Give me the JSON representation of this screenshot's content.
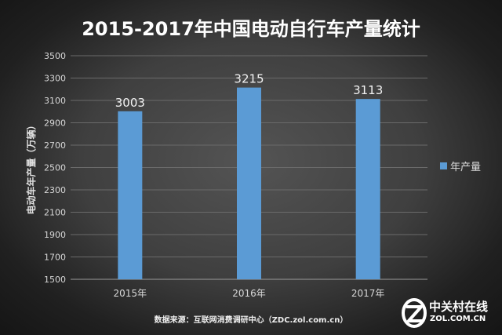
{
  "chart_data": {
    "type": "bar",
    "title": "2015-2017年中国电动自行车产量统计",
    "categories": [
      "2015年",
      "2016年",
      "2017年"
    ],
    "series": [
      {
        "name": "年产量",
        "values": [
          3003,
          3215,
          3113
        ],
        "color": "#5b9bd5"
      }
    ],
    "ylabel": "电动车年产量（万辆）",
    "ylim": [
      1500,
      3500
    ],
    "yticks": [
      1500,
      1700,
      1900,
      2100,
      2300,
      2500,
      2700,
      2900,
      3100,
      3300,
      3500
    ],
    "grid": true,
    "legend_position": "right",
    "data_labels": true
  },
  "source_text": "数据来源：互联网消费调研中心（ZDC.zol.com.cn）",
  "watermark": {
    "name_cn": "中关村在线",
    "url": "ZOL.COM.CN"
  },
  "colors": {
    "background": "#3f3f3f",
    "bar": "#5b9bd5",
    "text": "#e8e8e8"
  }
}
